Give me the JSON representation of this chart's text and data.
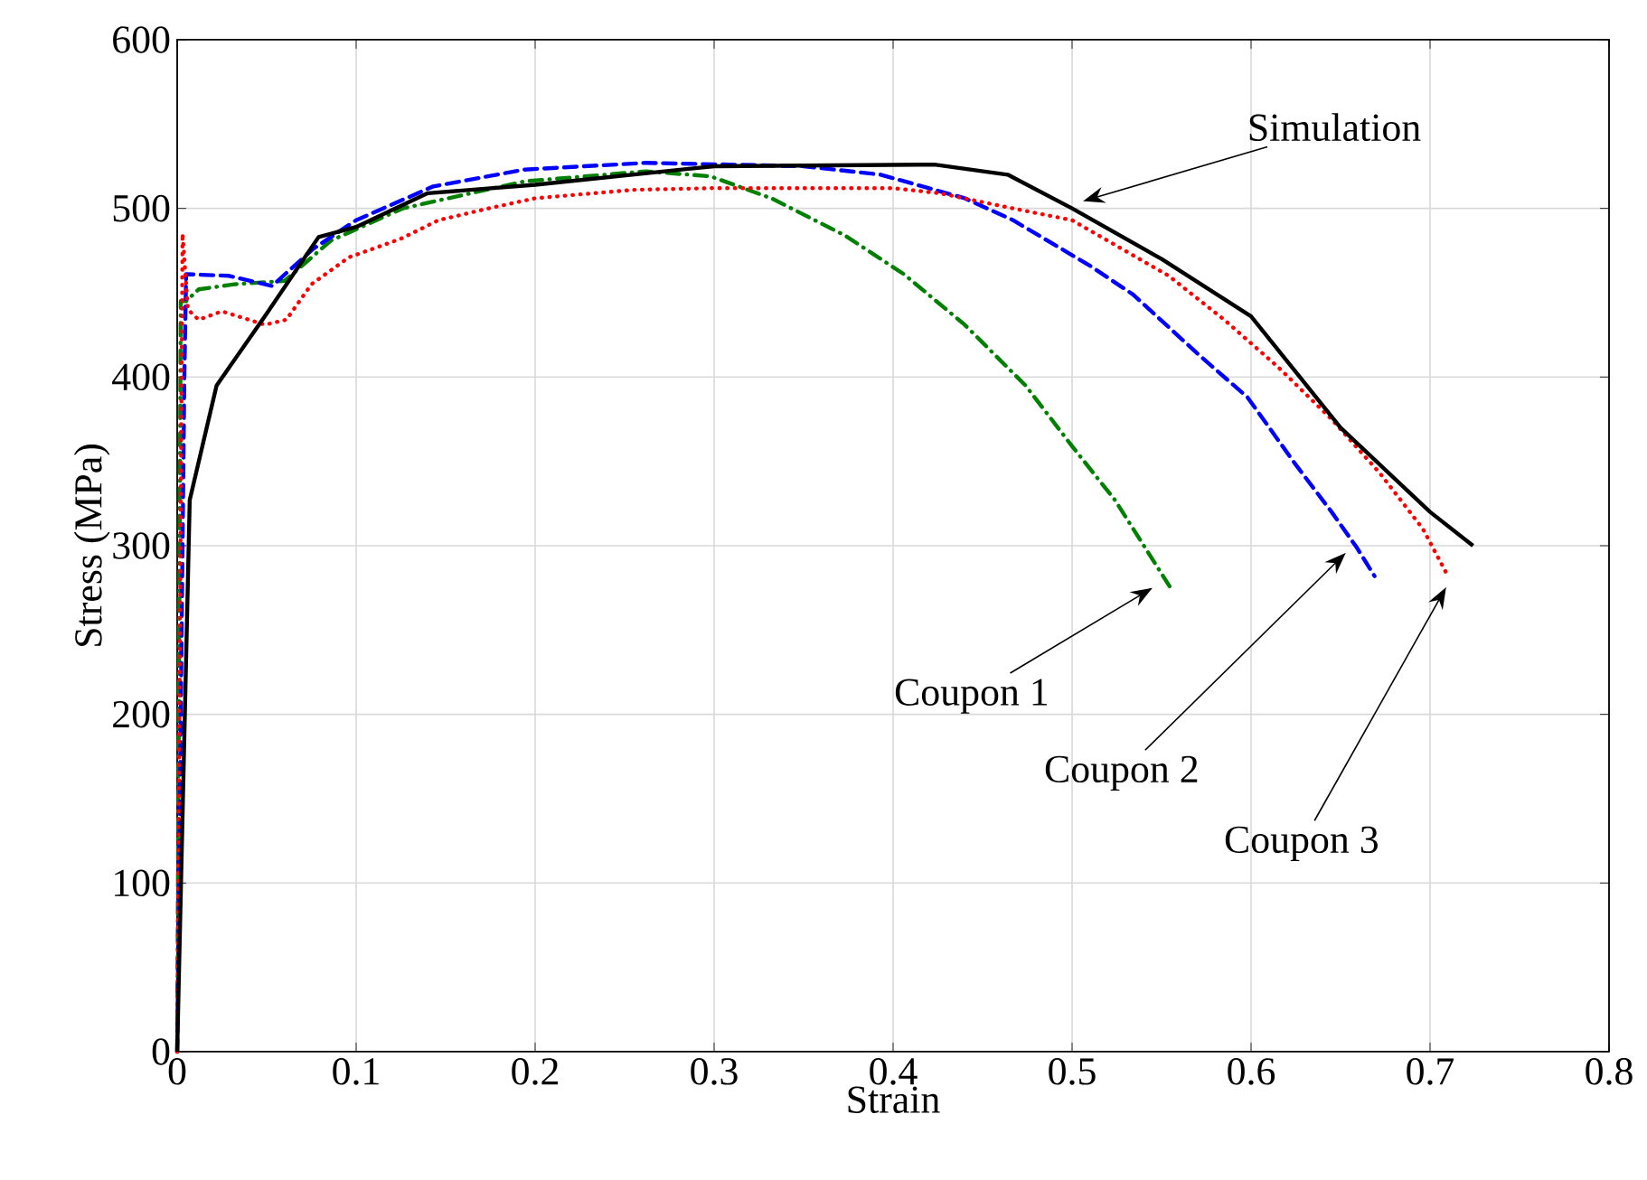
{
  "chart_data": {
    "type": "line",
    "xlabel": "Strain",
    "ylabel": "Stress (MPa)",
    "xlim": [
      0,
      0.8
    ],
    "ylim": [
      0,
      600
    ],
    "xticks": [
      0,
      0.1,
      0.2,
      0.3,
      0.4,
      0.5,
      0.6,
      0.7,
      0.8
    ],
    "yticks": [
      0,
      100,
      200,
      300,
      400,
      500,
      600
    ],
    "grid": true,
    "series": [
      {
        "color": "#008000",
        "line_style": "dashdot",
        "x": [
          0,
          0.002,
          0.005,
          0.012,
          0.032,
          0.06,
          0.086,
          0.126,
          0.194,
          0.262,
          0.298,
          0.332,
          0.373,
          0.406,
          0.44,
          0.474,
          0.5,
          0.524,
          0.555
        ],
        "values": [
          0,
          445,
          445,
          452,
          455,
          457,
          481,
          500,
          516,
          522,
          519,
          506,
          484,
          461,
          431,
          395,
          359,
          327,
          275
        ]
      },
      {
        "color": "#0000ff",
        "line_style": "dashed",
        "x": [
          0,
          0.004,
          0.005,
          0.029,
          0.053,
          0.076,
          0.1,
          0.143,
          0.194,
          0.262,
          0.35,
          0.393,
          0.44,
          0.467,
          0.51,
          0.534,
          0.571,
          0.598,
          0.625,
          0.645,
          0.659,
          0.669
        ],
        "values": [
          0,
          400,
          461,
          460,
          454,
          476,
          493,
          513,
          523,
          527,
          525,
          520,
          506,
          493,
          466,
          449,
          413,
          388,
          348,
          320,
          299,
          282
        ]
      },
      {
        "color": "#ff0000",
        "line_style": "dotted",
        "x": [
          0,
          0.003,
          0.006,
          0.012,
          0.025,
          0.049,
          0.061,
          0.075,
          0.096,
          0.125,
          0.146,
          0.174,
          0.2,
          0.255,
          0.3,
          0.4,
          0.426,
          0.467,
          0.5,
          0.554,
          0.585,
          0.615,
          0.645,
          0.672,
          0.696,
          0.709
        ],
        "values": [
          0,
          485,
          440,
          434,
          439,
          431,
          434,
          455,
          471,
          482,
          493,
          500,
          506,
          511,
          512,
          512,
          509,
          500,
          493,
          460,
          434,
          406,
          375,
          343,
          310,
          284
        ]
      },
      {
        "color": "#000000",
        "line_style": "solid",
        "x": [
          0,
          0.007,
          0.022,
          0.049,
          0.079,
          0.1,
          0.14,
          0.2,
          0.3,
          0.423,
          0.464,
          0.5,
          0.55,
          0.6,
          0.65,
          0.7,
          0.724
        ],
        "values": [
          0,
          327,
          395,
          436,
          483,
          489,
          509,
          514,
          525,
          526,
          520,
          500,
          470,
          436,
          370,
          320,
          300
        ]
      }
    ],
    "annotations": [
      "Simulation",
      "Coupon 1",
      "Coupon 2",
      "Coupon 3"
    ]
  }
}
